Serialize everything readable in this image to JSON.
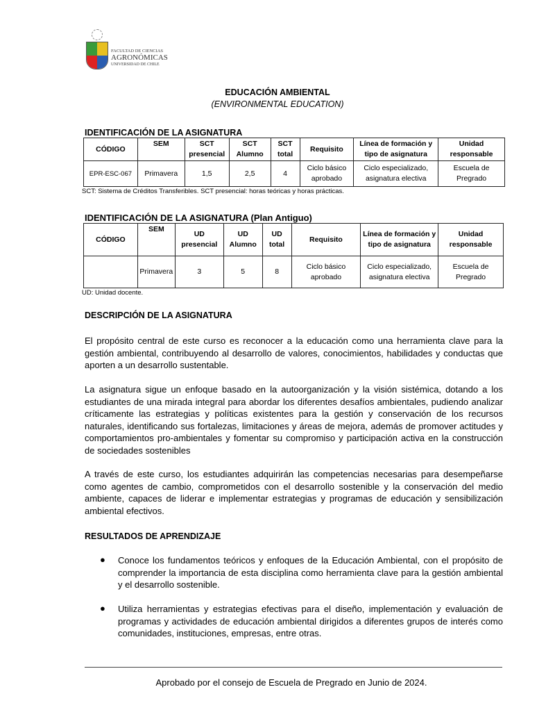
{
  "logo": {
    "line1": "FACULTAD DE CIENCIAS",
    "line2": "AGRONÓMICAS",
    "line3": "UNIVERSIDAD DE CHILE"
  },
  "title": "EDUCACIÓN AMBIENTAL",
  "subtitle": "(ENVIRONMENTAL EDUCATION)",
  "table1": {
    "heading": "IDENTIFICACIÓN DE LA ASIGNATURA",
    "headers": [
      "CÓDIGO",
      "SEM",
      "SCT presencial",
      "SCT Alumno",
      "SCT total",
      "Requisito",
      "Línea de formación y tipo de asignatura",
      "Unidad responsable"
    ],
    "row": [
      "EPR-ESC-067",
      "Primavera",
      "1,5",
      "2,5",
      "4",
      "Ciclo básico aprobado",
      "Ciclo especializado, asignatura electiva",
      "Escuela de Pregrado"
    ],
    "note": "SCT: Sistema de Créditos Transferibles. SCT presencial: horas teóricas y horas prácticas."
  },
  "table2": {
    "heading": "IDENTIFICACIÓN DE LA ASIGNATURA (Plan Antiguo)",
    "headers": [
      "CÓDIGO",
      "SEM",
      "UD presencial",
      "UD Alumno",
      "UD total",
      "Requisito",
      "Línea de formación y tipo de asignatura",
      "Unidad responsable"
    ],
    "row": [
      "",
      "Primavera",
      "3",
      "5",
      "8",
      "Ciclo básico aprobado",
      "Ciclo especializado, asignatura electiva",
      "Escuela de Pregrado"
    ],
    "note": "UD: Unidad docente."
  },
  "description": {
    "heading": "DESCRIPCIÓN DE LA ASIGNATURA",
    "paragraphs": [
      "El propósito central de este curso es reconocer a la educación como una herramienta clave para la gestión ambiental, contribuyendo al desarrollo de valores, conocimientos, habilidades y conductas que aporten a un desarrollo sustentable.",
      "La asignatura sigue un enfoque basado en la autoorganización y la visión sistémica, dotando a los estudiantes de una mirada integral para abordar los diferentes desafíos ambientales,  pudiendo analizar críticamente las estrategias y políticas existentes para la gestión y conservación de los recursos naturales, identificando sus fortalezas, limitaciones y áreas de mejora, además de promover actitudes y comportamientos pro-ambientales y fomentar su compromiso y participación activa en la construcción de sociedades sostenibles",
      "A través de este curso, los estudiantes adquirirán las competencias necesarias para desempeñarse como agentes de cambio, comprometidos con el desarrollo sostenible y la conservación del medio ambiente, capaces de liderar e implementar estrategias y programas de educación y sensibilización ambiental efectivos."
    ]
  },
  "outcomes": {
    "heading": "RESULTADOS DE APRENDIZAJE",
    "bullet": "●",
    "items": [
      "Conoce los fundamentos teóricos y enfoques de la Educación Ambiental, con el propósito de comprender la importancia de esta disciplina como herramienta clave para la gestión ambiental y el desarrollo sostenible.",
      "Utiliza herramientas y estrategias efectivas para el diseño, implementación y evaluación de programas y actividades de educación ambiental dirigidos a diferentes grupos de interés como comunidades, instituciones, empresas, entre otras."
    ]
  },
  "footer": "Aprobado por el consejo de Escuela de Pregrado en Junio de 2024."
}
